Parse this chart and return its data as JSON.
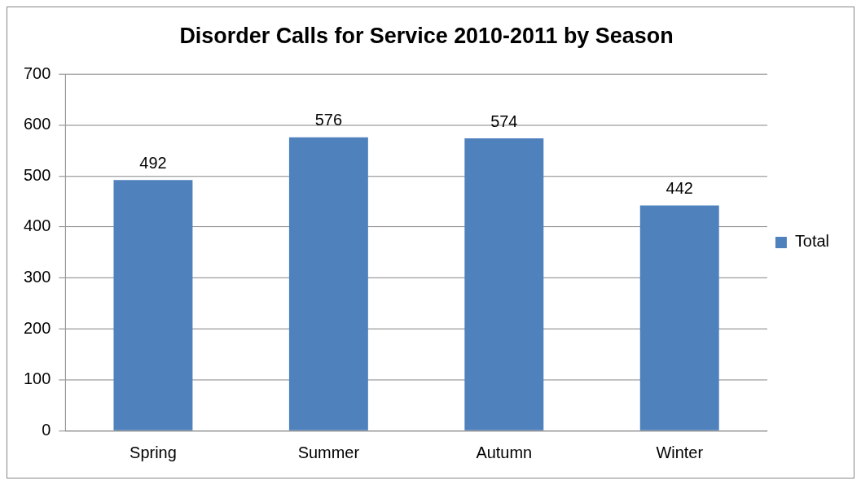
{
  "chart_data": {
    "type": "bar",
    "title": "Disorder Calls for Service 2010-2011 by Season",
    "categories": [
      "Spring",
      "Summer",
      "Autumn",
      "Winter"
    ],
    "series": [
      {
        "name": "Total",
        "color": "#4f81bd",
        "values": [
          492,
          576,
          574,
          442
        ]
      }
    ],
    "ylim": [
      0,
      700
    ],
    "yticks": [
      0,
      100,
      200,
      300,
      400,
      500,
      600,
      700
    ],
    "grid": "y",
    "legend": "right",
    "data_labels": true
  }
}
